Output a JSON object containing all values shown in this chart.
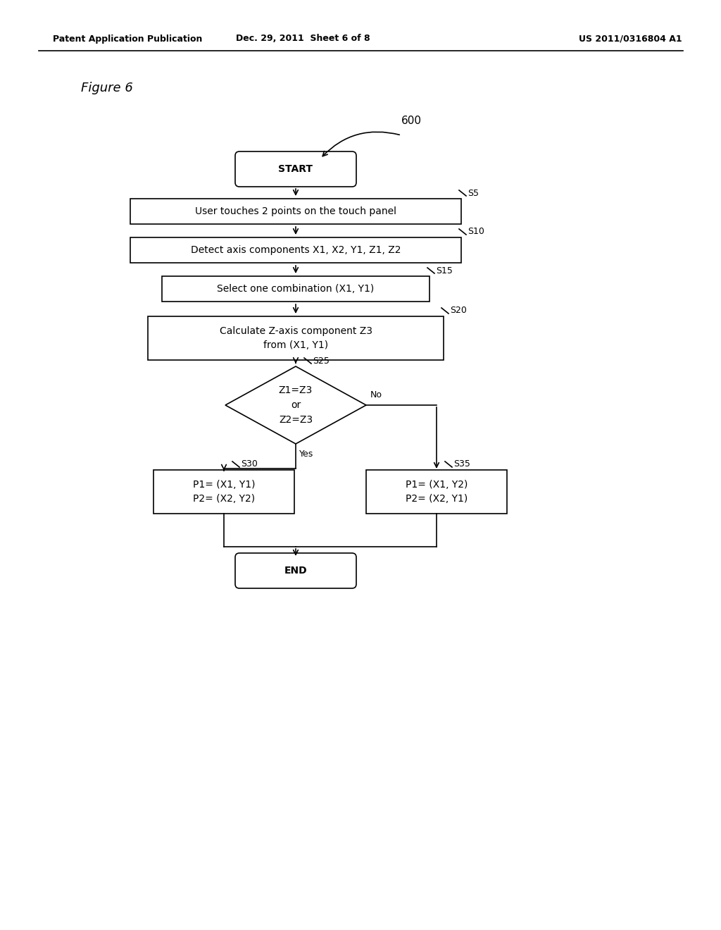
{
  "bg_color": "#ffffff",
  "header_left": "Patent Application Publication",
  "header_mid": "Dec. 29, 2011  Sheet 6 of 8",
  "header_right": "US 2011/0316804 A1",
  "figure_label": "Figure 6",
  "diagram_label": "600",
  "node_start_label": "START",
  "node_end_label": "END",
  "node_s5_label": "User touches 2 points on the touch panel",
  "node_s10_label": "Detect axis components X1, X2, Y1, Z1, Z2",
  "node_s15_label": "Select one combination (X1, Y1)",
  "node_s20_line1": "Calculate Z-axis component Z3",
  "node_s20_line2": "from (X1, Y1)",
  "node_s25_label": "Z1=Z3\nor\nZ2=Z3",
  "node_s30_line1": "P1= (X1, Y1)",
  "node_s30_line2": "P2= (X2, Y2)",
  "node_s35_line1": "P1= (X1, Y2)",
  "node_s35_line2": "P2= (X2, Y1)",
  "yes_label": "Yes",
  "no_label": "No",
  "font_size_header": 9,
  "font_size_node": 10,
  "font_size_figure": 13,
  "font_size_step": 9,
  "font_size_600": 11,
  "line_color": "#000000",
  "lw": 1.2
}
